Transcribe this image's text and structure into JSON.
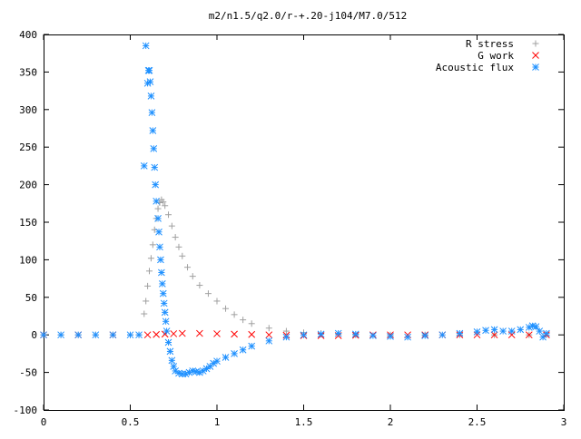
{
  "chart_data": {
    "type": "scatter",
    "title": "m2/n1.5/q2.0/r-+.20-j104/M7.0/512",
    "xlabel": "",
    "ylabel": "",
    "xlim": [
      0,
      3
    ],
    "ylim": [
      -100,
      400
    ],
    "xticks": [
      0,
      0.5,
      1,
      1.5,
      2,
      2.5,
      3
    ],
    "xtick_labels": [
      "0",
      "0.5",
      "1",
      "1.5",
      "2",
      "2.5",
      "3"
    ],
    "yticks": [
      -100,
      -50,
      0,
      50,
      100,
      150,
      200,
      250,
      300,
      350,
      400
    ],
    "ytick_labels": [
      "-100",
      "-50",
      "0",
      "50",
      "100",
      "150",
      "200",
      "250",
      "300",
      "350",
      "400"
    ],
    "grid": false,
    "legend_position": "top-right",
    "series": [
      {
        "name": "R stress",
        "marker": "plus",
        "color": "#a0a0a0",
        "x": [
          0.0,
          0.1,
          0.2,
          0.3,
          0.4,
          0.5,
          0.55,
          0.58,
          0.59,
          0.6,
          0.61,
          0.62,
          0.63,
          0.64,
          0.65,
          0.66,
          0.67,
          0.68,
          0.69,
          0.7,
          0.72,
          0.74,
          0.76,
          0.78,
          0.8,
          0.83,
          0.86,
          0.9,
          0.95,
          1.0,
          1.05,
          1.1,
          1.15,
          1.2,
          1.3,
          1.4,
          1.5,
          1.6,
          1.7,
          1.8,
          2.0,
          2.2,
          2.4,
          2.6,
          2.8,
          2.9
        ],
        "y": [
          0,
          0,
          0,
          0,
          0,
          0,
          0,
          28,
          45,
          65,
          85,
          102,
          120,
          140,
          155,
          168,
          176,
          180,
          177,
          172,
          160,
          145,
          130,
          117,
          105,
          90,
          78,
          66,
          55,
          45,
          35,
          27,
          20,
          15,
          9,
          5,
          3,
          2,
          1,
          0,
          0,
          0,
          0,
          0,
          0,
          0
        ]
      },
      {
        "name": "G work",
        "marker": "cross",
        "color": "#ff0000",
        "x": [
          0.0,
          0.2,
          0.4,
          0.6,
          0.65,
          0.7,
          0.75,
          0.8,
          0.9,
          1.0,
          1.1,
          1.2,
          1.3,
          1.4,
          1.5,
          1.6,
          1.7,
          1.8,
          1.9,
          2.0,
          2.1,
          2.2,
          2.3,
          2.4,
          2.5,
          2.6,
          2.7,
          2.8,
          2.9
        ],
        "y": [
          0,
          0,
          0,
          0,
          0.5,
          1,
          1.5,
          2,
          2,
          1.5,
          1,
          0.5,
          0,
          -0.5,
          -1,
          -1,
          -1,
          -0.5,
          0,
          0,
          0,
          0,
          0,
          0,
          0,
          0,
          0,
          0,
          0
        ]
      },
      {
        "name": "Acoustic flux",
        "marker": "star",
        "color": "#1e90ff",
        "x": [
          0.0,
          0.1,
          0.2,
          0.3,
          0.4,
          0.5,
          0.55,
          0.58,
          0.59,
          0.6,
          0.605,
          0.61,
          0.615,
          0.62,
          0.625,
          0.63,
          0.635,
          0.64,
          0.645,
          0.65,
          0.66,
          0.665,
          0.67,
          0.675,
          0.68,
          0.685,
          0.69,
          0.695,
          0.7,
          0.705,
          0.71,
          0.72,
          0.73,
          0.74,
          0.75,
          0.76,
          0.78,
          0.8,
          0.82,
          0.84,
          0.86,
          0.88,
          0.9,
          0.92,
          0.94,
          0.96,
          0.98,
          1.0,
          1.05,
          1.1,
          1.15,
          1.2,
          1.3,
          1.4,
          1.5,
          1.6,
          1.7,
          1.8,
          1.9,
          2.0,
          2.1,
          2.2,
          2.3,
          2.4,
          2.5,
          2.55,
          2.6,
          2.65,
          2.7,
          2.75,
          2.8,
          2.82,
          2.84,
          2.86,
          2.88,
          2.9
        ],
        "y": [
          0,
          0,
          0,
          0,
          0,
          0,
          0,
          225,
          385,
          335,
          352,
          352,
          337,
          318,
          296,
          272,
          248,
          223,
          200,
          178,
          155,
          137,
          117,
          100,
          83,
          68,
          55,
          42,
          30,
          18,
          5,
          -10,
          -22,
          -34,
          -42,
          -48,
          -51,
          -52,
          -52,
          -50,
          -48,
          -49,
          -50,
          -48,
          -45,
          -42,
          -38,
          -35,
          -30,
          -25,
          -20,
          -15,
          -8,
          -3,
          0,
          1,
          2,
          1,
          -1,
          -2,
          -3,
          -1,
          0,
          2,
          4,
          6,
          7,
          5,
          5,
          7,
          10,
          12,
          11,
          5,
          -3,
          2
        ]
      }
    ]
  }
}
